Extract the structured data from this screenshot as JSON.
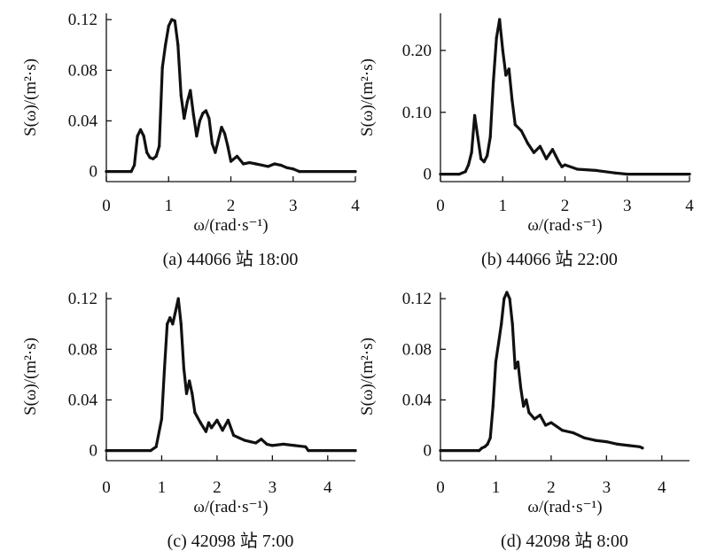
{
  "figure": {
    "title": ""
  },
  "chart_data": [
    {
      "type": "line",
      "caption": "(a) 44066 站 18:00",
      "xlabel": "ω/(rad·s⁻¹)",
      "ylabel": "S(ω)/(m²·s)",
      "xlim": [
        0,
        4
      ],
      "ylim": [
        -0.008,
        0.125
      ],
      "xticks": [
        0,
        1,
        2,
        3,
        4
      ],
      "yticks": [
        0,
        0.04,
        0.08,
        0.12
      ],
      "ytick_labels": [
        "0",
        "0.04",
        "0.08",
        "0.12"
      ],
      "grid": false,
      "series": [
        {
          "x": [
            0,
            0.4,
            0.45,
            0.5,
            0.55,
            0.6,
            0.65,
            0.7,
            0.75,
            0.8,
            0.85,
            0.9,
            0.95,
            1.0,
            1.05,
            1.1,
            1.15,
            1.2,
            1.25,
            1.3,
            1.35,
            1.4,
            1.45,
            1.5,
            1.55,
            1.6,
            1.65,
            1.7,
            1.75,
            1.8,
            1.85,
            1.9,
            1.95,
            2.0,
            2.1,
            2.2,
            2.3,
            2.4,
            2.5,
            2.6,
            2.7,
            2.8,
            2.9,
            3.0,
            3.1,
            4.0
          ],
          "y": [
            0,
            0,
            0.005,
            0.028,
            0.033,
            0.028,
            0.015,
            0.011,
            0.01,
            0.012,
            0.02,
            0.082,
            0.1,
            0.115,
            0.12,
            0.119,
            0.1,
            0.06,
            0.042,
            0.055,
            0.064,
            0.045,
            0.028,
            0.04,
            0.046,
            0.048,
            0.042,
            0.022,
            0.015,
            0.025,
            0.035,
            0.03,
            0.02,
            0.008,
            0.012,
            0.006,
            0.007,
            0.006,
            0.005,
            0.004,
            0.006,
            0.005,
            0.003,
            0.002,
            0,
            0
          ]
        }
      ]
    },
    {
      "type": "line",
      "caption": "(b) 44066 站 22:00",
      "xlabel": "ω/(rad·s⁻¹)",
      "ylabel": "S(ω)/(m²·s)",
      "xlim": [
        0,
        4
      ],
      "ylim": [
        -0.012,
        0.26
      ],
      "xticks": [
        0,
        1,
        2,
        3,
        4
      ],
      "yticks": [
        0,
        0.1,
        0.2
      ],
      "ytick_labels": [
        "0",
        "0.10",
        "0.20"
      ],
      "grid": false,
      "series": [
        {
          "x": [
            0,
            0.3,
            0.35,
            0.4,
            0.45,
            0.5,
            0.55,
            0.6,
            0.65,
            0.7,
            0.75,
            0.8,
            0.85,
            0.9,
            0.95,
            1.0,
            1.05,
            1.1,
            1.15,
            1.2,
            1.3,
            1.4,
            1.5,
            1.6,
            1.7,
            1.8,
            1.85,
            1.9,
            1.95,
            2.0,
            2.2,
            2.5,
            2.8,
            3.0,
            4.0
          ],
          "y": [
            0,
            0,
            0.002,
            0.004,
            0.015,
            0.035,
            0.095,
            0.06,
            0.025,
            0.02,
            0.03,
            0.06,
            0.15,
            0.22,
            0.25,
            0.2,
            0.16,
            0.17,
            0.12,
            0.08,
            0.07,
            0.05,
            0.035,
            0.045,
            0.025,
            0.04,
            0.03,
            0.02,
            0.012,
            0.015,
            0.008,
            0.006,
            0.002,
            0,
            0
          ]
        }
      ]
    },
    {
      "type": "line",
      "caption": "(c) 42098 站 7:00",
      "xlabel": "ω/(rad·s⁻¹)",
      "ylabel": "S(ω)/(m²·s)",
      "xlim": [
        0,
        4.5
      ],
      "ylim": [
        -0.008,
        0.125
      ],
      "xticks": [
        0,
        1,
        2,
        3,
        4
      ],
      "yticks": [
        0,
        0.04,
        0.08,
        0.12
      ],
      "ytick_labels": [
        "0",
        "0.04",
        "0.08",
        "0.12"
      ],
      "grid": false,
      "series": [
        {
          "x": [
            0,
            0.8,
            0.9,
            1.0,
            1.05,
            1.1,
            1.15,
            1.2,
            1.25,
            1.3,
            1.35,
            1.4,
            1.45,
            1.5,
            1.55,
            1.6,
            1.7,
            1.8,
            1.85,
            1.9,
            2.0,
            2.1,
            2.2,
            2.3,
            2.4,
            2.5,
            2.6,
            2.7,
            2.8,
            2.9,
            3.0,
            3.2,
            3.4,
            3.6,
            3.65,
            4.5
          ],
          "y": [
            0,
            0,
            0.003,
            0.025,
            0.065,
            0.1,
            0.105,
            0.1,
            0.11,
            0.12,
            0.1,
            0.065,
            0.045,
            0.055,
            0.045,
            0.03,
            0.022,
            0.015,
            0.022,
            0.018,
            0.024,
            0.016,
            0.024,
            0.012,
            0.01,
            0.008,
            0.007,
            0.006,
            0.009,
            0.005,
            0.004,
            0.005,
            0.004,
            0.003,
            0,
            0
          ]
        }
      ]
    },
    {
      "type": "line",
      "caption": "(d) 42098 站 8:00",
      "xlabel": "ω/(rad·s⁻¹)",
      "ylabel": "S(ω)/(m²·s)",
      "xlim": [
        0,
        4.5
      ],
      "ylim": [
        -0.008,
        0.125
      ],
      "xticks": [
        0,
        1,
        2,
        3,
        4
      ],
      "yticks": [
        0,
        0.04,
        0.08,
        0.12
      ],
      "ytick_labels": [
        "0",
        "0.04",
        "0.08",
        "0.12"
      ],
      "grid": false,
      "series": [
        {
          "x": [
            0,
            0.7,
            0.75,
            0.8,
            0.85,
            0.9,
            0.95,
            1.0,
            1.05,
            1.1,
            1.15,
            1.2,
            1.25,
            1.3,
            1.35,
            1.4,
            1.45,
            1.5,
            1.55,
            1.6,
            1.7,
            1.8,
            1.9,
            2.0,
            2.2,
            2.4,
            2.6,
            2.8,
            3.0,
            3.2,
            3.4,
            3.6,
            3.65
          ],
          "y": [
            0,
            0,
            0.002,
            0.003,
            0.005,
            0.01,
            0.035,
            0.07,
            0.085,
            0.1,
            0.12,
            0.125,
            0.12,
            0.1,
            0.065,
            0.07,
            0.05,
            0.035,
            0.04,
            0.03,
            0.025,
            0.028,
            0.02,
            0.022,
            0.016,
            0.014,
            0.01,
            0.008,
            0.007,
            0.005,
            0.004,
            0.003,
            0.002
          ]
        }
      ]
    }
  ]
}
